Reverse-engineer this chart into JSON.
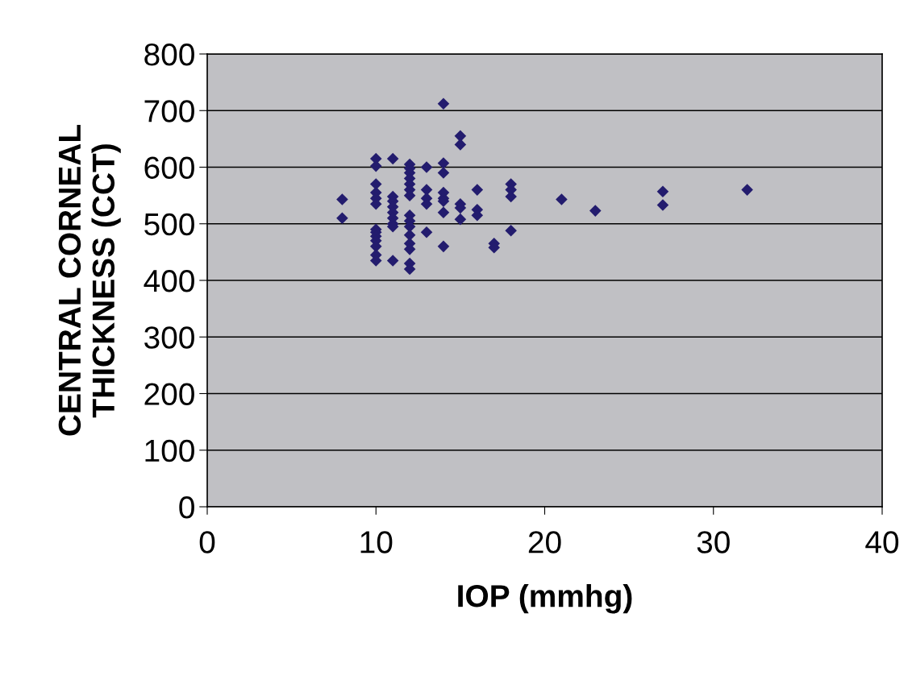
{
  "chart_data": {
    "type": "scatter",
    "xlabel": "IOP (mmhg)",
    "ylabel": "CENTRAL CORNEAL\nTHICKNESS (CCT)",
    "series": [
      {
        "color": "#231c6e",
        "x": [
          8,
          8,
          10,
          10,
          10,
          10,
          10,
          10,
          10,
          10,
          10,
          10,
          10,
          10,
          10,
          11,
          11,
          11,
          11,
          11,
          11,
          11,
          11,
          11,
          12,
          12,
          12,
          12,
          12,
          12,
          12,
          12,
          12,
          12,
          12,
          12,
          12,
          12,
          12,
          13,
          13,
          13,
          13,
          13,
          14,
          14,
          14,
          14,
          14,
          14,
          14,
          14,
          15,
          15,
          15,
          15,
          15,
          16,
          16,
          16,
          17,
          17,
          18,
          18,
          18,
          18,
          21,
          23,
          27,
          27,
          32
        ],
        "values": [
          543,
          510,
          615,
          602,
          570,
          555,
          545,
          535,
          490,
          485,
          478,
          470,
          460,
          445,
          435,
          615,
          548,
          540,
          530,
          520,
          510,
          500,
          495,
          435,
          605,
          598,
          590,
          580,
          570,
          560,
          550,
          515,
          505,
          495,
          480,
          465,
          455,
          430,
          420,
          600,
          560,
          545,
          535,
          485,
          712,
          607,
          590,
          555,
          545,
          540,
          520,
          460,
          655,
          640,
          535,
          528,
          508,
          560,
          525,
          515,
          465,
          458,
          570,
          560,
          548,
          488,
          543,
          523,
          557,
          533,
          560
        ]
      }
    ],
    "xlim": [
      0,
      40
    ],
    "xticks": [
      0,
      10,
      20,
      30,
      40
    ],
    "ylim": [
      0,
      800
    ],
    "yticks": [
      0,
      100,
      200,
      300,
      400,
      500,
      600,
      700,
      800
    ],
    "grid": "y",
    "marker": "diamond",
    "legend": false
  }
}
